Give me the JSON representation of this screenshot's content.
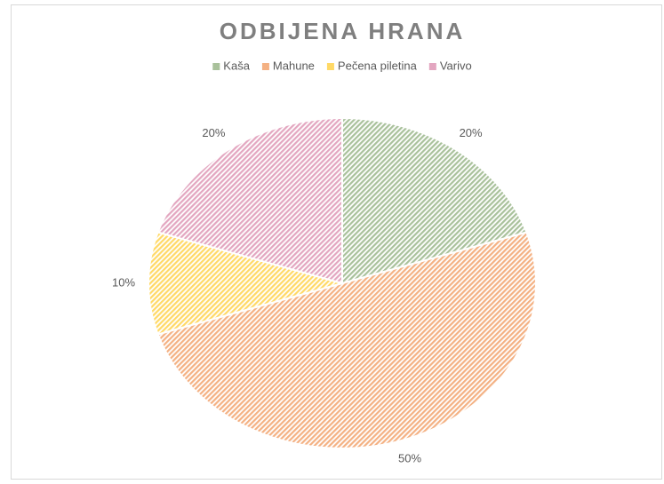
{
  "chart_data": {
    "type": "pie",
    "title": "ODBIJENA HRANA",
    "categories": [
      "Kaša",
      "Mahune",
      "Pečena piletina",
      "Varivo"
    ],
    "values": [
      20,
      50,
      10,
      20
    ],
    "value_labels": [
      "20%",
      "50%",
      "10%",
      "20%"
    ],
    "colors": [
      "#a9c19b",
      "#f4b183",
      "#ffd966",
      "#e3a6c0"
    ],
    "legend": "top"
  }
}
